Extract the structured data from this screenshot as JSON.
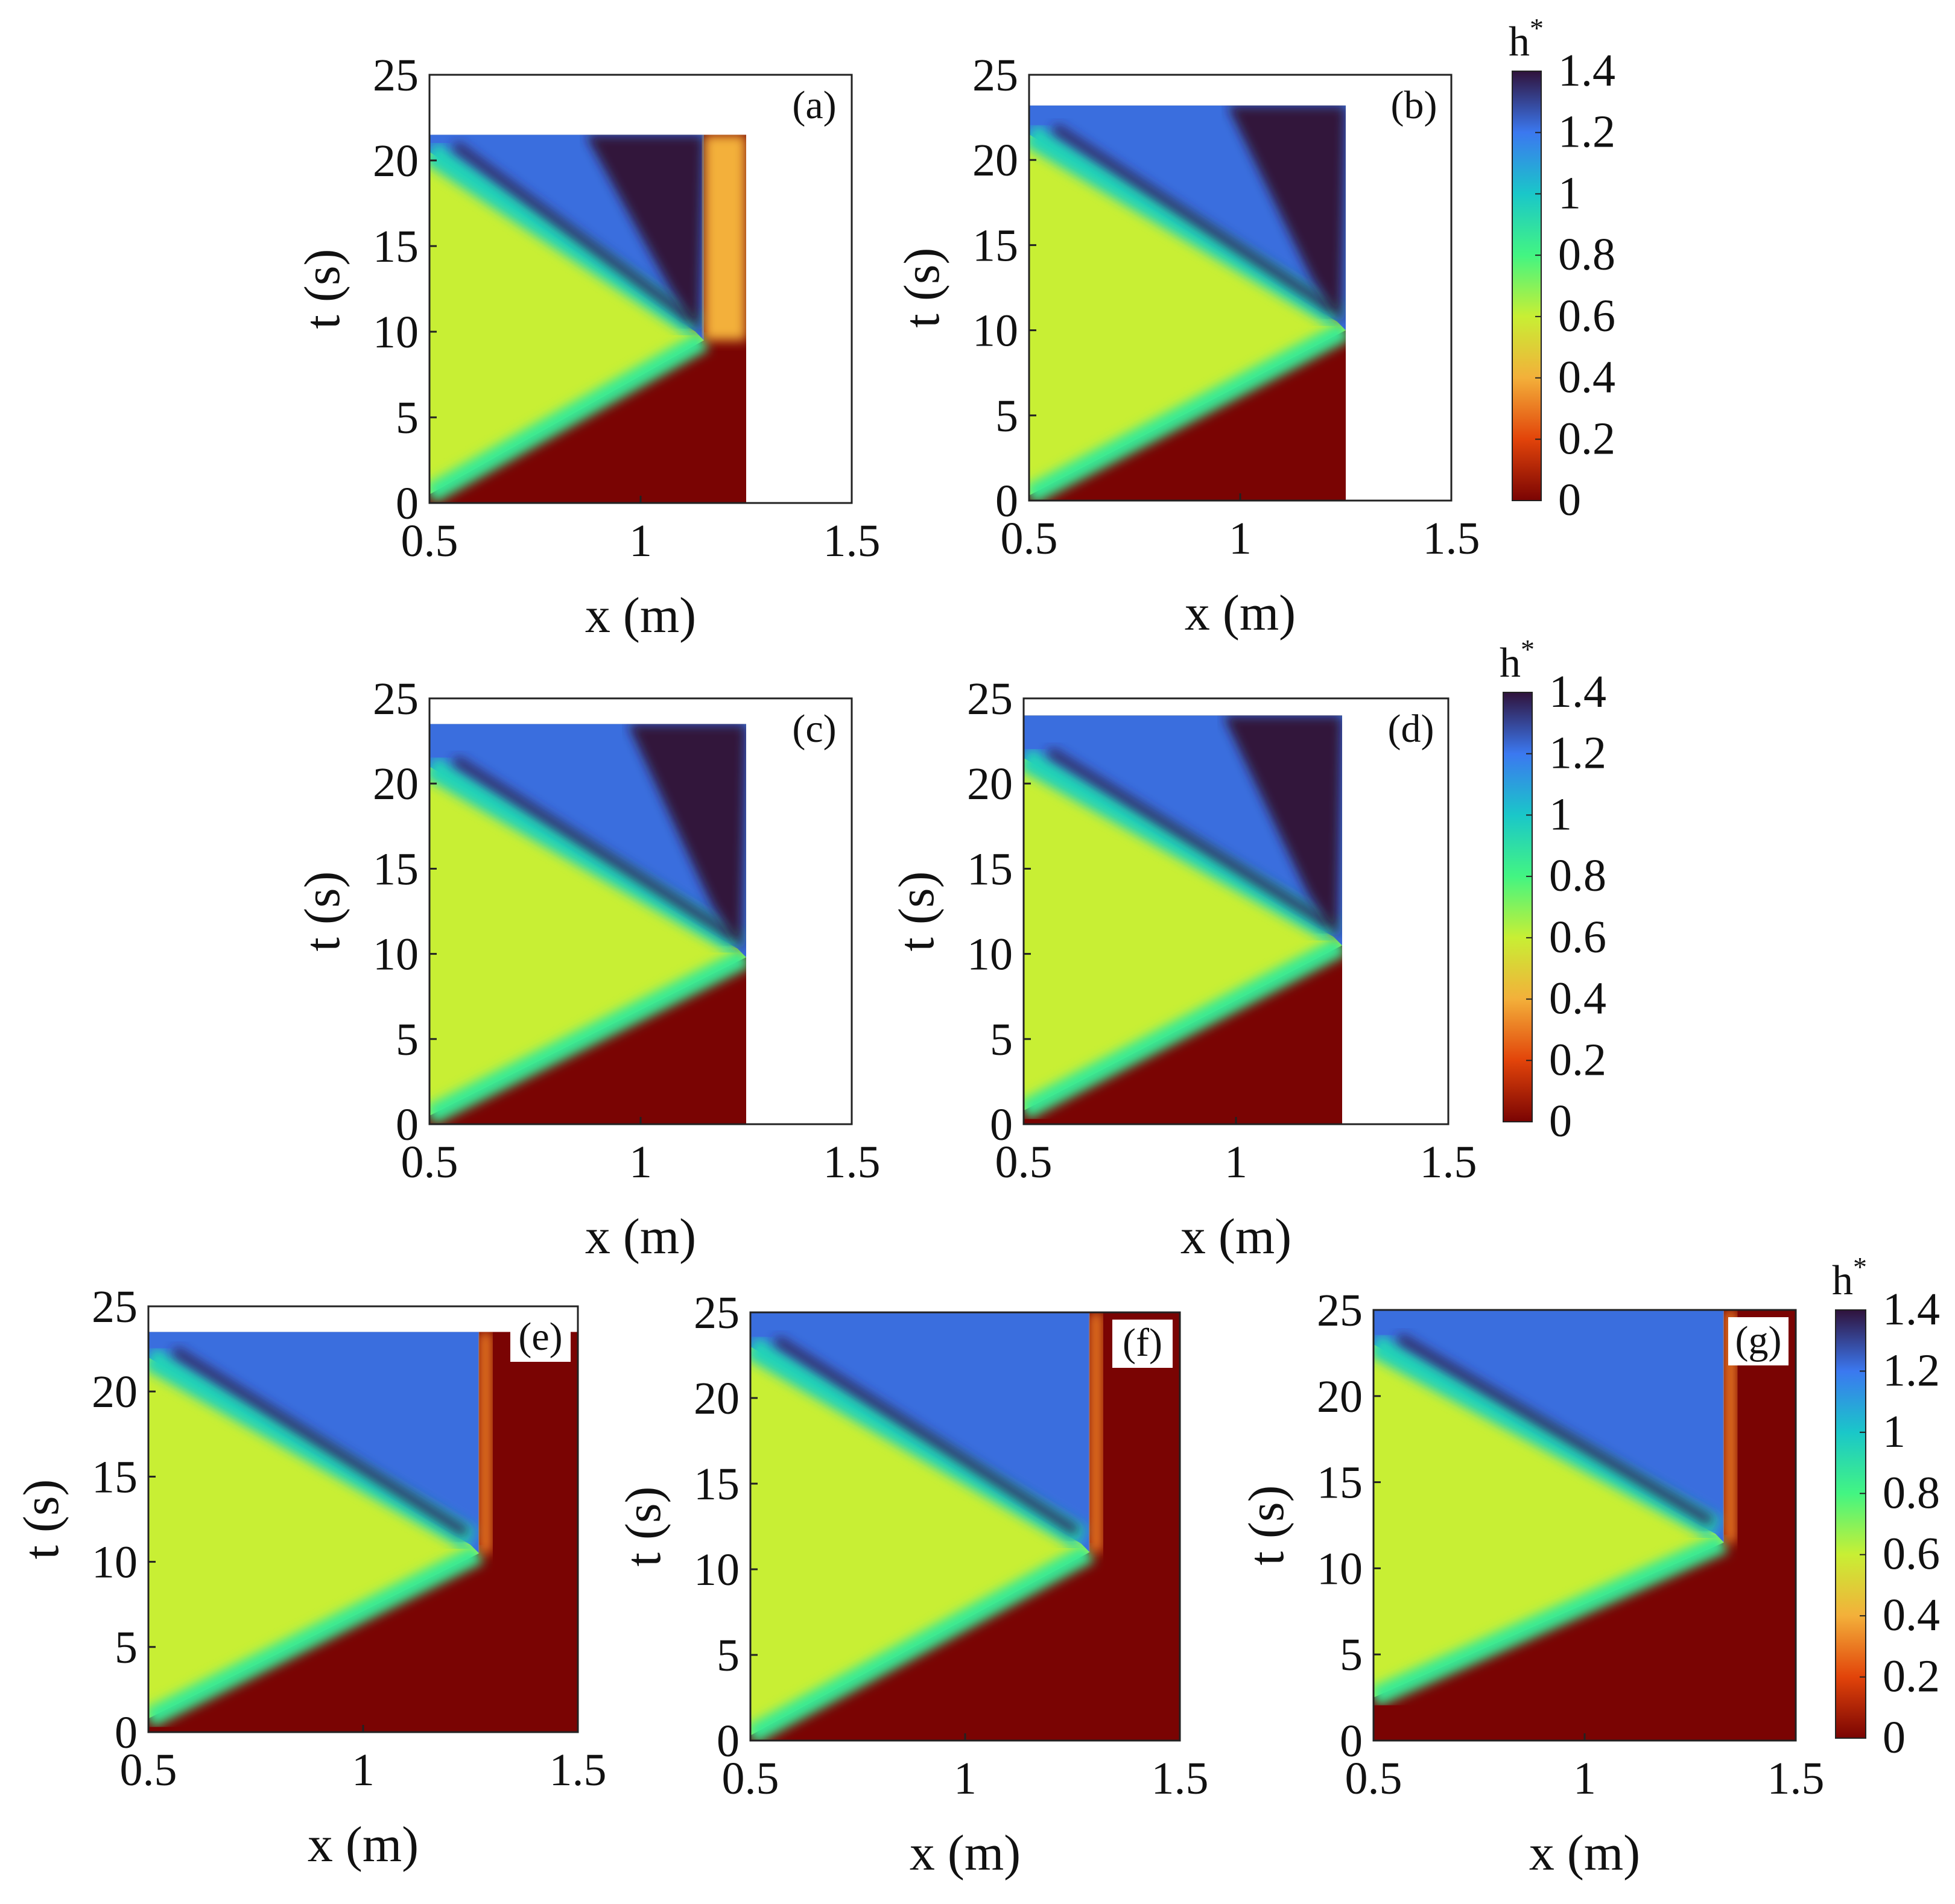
{
  "figure": {
    "colorbar_label": "h",
    "colorbar_label_sup": "*",
    "colorbar_ticks": [
      "1.4",
      "1.2",
      "1",
      "0.8",
      "0.6",
      "0.4",
      "0.2",
      "0"
    ],
    "colors": {
      "h_0": "#7a0403",
      "h_0.2": "#e2440a",
      "h_0.4": "#f3b03a",
      "h_0.6": "#c8ef34",
      "h_0.8": "#43f582",
      "h_1.0": "#1ac7c9",
      "h_1.2": "#3b78f0",
      "h_1.4": "#30123b"
    }
  },
  "chart_data": [
    {
      "type": "heatmap",
      "panel_label": "(a)",
      "xlabel": "x (m)",
      "ylabel": "t (s)",
      "xlim": [
        0.5,
        1.5
      ],
      "ylim": [
        0,
        25
      ],
      "xticks": [
        "0.5",
        "1",
        "1.5"
      ],
      "yticks": [
        "0",
        "5",
        "10",
        "15",
        "20",
        "25"
      ],
      "colorbar": "h*",
      "clim": [
        0,
        1.4
      ],
      "colormap": "turbo_reversed",
      "features": {
        "x_max": 1.25,
        "t_max": 21.5,
        "front_t_at_x_max": 9.5,
        "front_t_at_x_min": 0.5,
        "reflection_t_at_x_min": 20.5,
        "wall_dry_strip_x": [
          1.15,
          1.25
        ]
      }
    },
    {
      "type": "heatmap",
      "panel_label": "(b)",
      "xlabel": "x (m)",
      "ylabel": "t (s)",
      "xlim": [
        0.5,
        1.5
      ],
      "ylim": [
        0,
        25
      ],
      "xticks": [
        "0.5",
        "1",
        "1.5"
      ],
      "yticks": [
        "0",
        "5",
        "10",
        "15",
        "20",
        "25"
      ],
      "colorbar": "h*",
      "clim": [
        0,
        1.4
      ],
      "colormap": "turbo_reversed",
      "features": {
        "x_max": 1.25,
        "t_max": 23.2,
        "front_t_at_x_max": 10.0,
        "front_t_at_x_min": 0.3,
        "reflection_t_at_x_min": 21.5
      }
    },
    {
      "type": "heatmap",
      "panel_label": "(c)",
      "xlabel": "x (m)",
      "ylabel": "t (s)",
      "xlim": [
        0.5,
        1.5
      ],
      "ylim": [
        0,
        25
      ],
      "xticks": [
        "0.5",
        "1",
        "1.5"
      ],
      "yticks": [
        "0",
        "5",
        "10",
        "15",
        "20",
        "25"
      ],
      "colorbar": "h*",
      "clim": [
        0,
        1.4
      ],
      "colormap": "turbo_reversed",
      "features": {
        "x_max": 1.25,
        "t_max": 23.5,
        "front_t_at_x_max": 9.8,
        "front_t_at_x_min": 0.5,
        "reflection_t_at_x_min": 21.0
      }
    },
    {
      "type": "heatmap",
      "panel_label": "(d)",
      "xlabel": "x (m)",
      "ylabel": "t (s)",
      "xlim": [
        0.5,
        1.5
      ],
      "ylim": [
        0,
        25
      ],
      "xticks": [
        "0.5",
        "1",
        "1.5"
      ],
      "yticks": [
        "0",
        "5",
        "10",
        "15",
        "20",
        "25"
      ],
      "colorbar": "h*",
      "clim": [
        0,
        1.4
      ],
      "colormap": "turbo_reversed",
      "features": {
        "x_max": 1.25,
        "t_max": 24.0,
        "front_t_at_x_max": 10.5,
        "front_t_at_x_min": 0.8,
        "reflection_t_at_x_min": 21.5
      }
    },
    {
      "type": "heatmap",
      "panel_label": "(e)",
      "xlabel": "x (m)",
      "ylabel": "t (s)",
      "xlim": [
        0.5,
        1.5
      ],
      "ylim": [
        0,
        25
      ],
      "xticks": [
        "0.5",
        "1",
        "1.5"
      ],
      "yticks": [
        "0",
        "5",
        "10",
        "15",
        "20",
        "25"
      ],
      "colorbar": "h*",
      "clim": [
        0,
        1.4
      ],
      "colormap": "turbo_reversed",
      "features": {
        "x_max": 1.5,
        "t_max": 23.5,
        "wet_edge_x": 1.27,
        "front_t_at_x_edge": 10.5,
        "front_t_at_x_min": 0.8,
        "reflection_t_at_x_min": 22.0
      }
    },
    {
      "type": "heatmap",
      "panel_label": "(f)",
      "xlabel": "x (m)",
      "ylabel": "t (s)",
      "xlim": [
        0.5,
        1.5
      ],
      "ylim": [
        0,
        25
      ],
      "xticks": [
        "0.5",
        "1",
        "1.5"
      ],
      "yticks": [
        "0",
        "5",
        "10",
        "15",
        "20",
        "25"
      ],
      "colorbar": "h*",
      "clim": [
        0,
        1.4
      ],
      "colormap": "turbo_reversed",
      "features": {
        "x_max": 1.5,
        "t_max": 25.0,
        "wet_edge_x": 1.29,
        "front_t_at_x_edge": 11.0,
        "front_t_at_x_min": 0.3,
        "reflection_t_at_x_min": 23.0
      }
    },
    {
      "type": "heatmap",
      "panel_label": "(g)",
      "xlabel": "x (m)",
      "ylabel": "t (s)",
      "xlim": [
        0.5,
        1.5
      ],
      "ylim": [
        0,
        25
      ],
      "xticks": [
        "0.5",
        "1",
        "1.5"
      ],
      "yticks": [
        "0",
        "5",
        "10",
        "15",
        "20",
        "25"
      ],
      "colorbar": "h*",
      "clim": [
        0,
        1.4
      ],
      "colormap": "turbo_reversed",
      "features": {
        "x_max": 1.5,
        "t_max": 25.0,
        "wet_edge_x": 1.33,
        "front_t_at_x_edge": 11.5,
        "front_t_at_x_min": 2.5,
        "reflection_t_at_x_min": 23.0
      }
    }
  ]
}
